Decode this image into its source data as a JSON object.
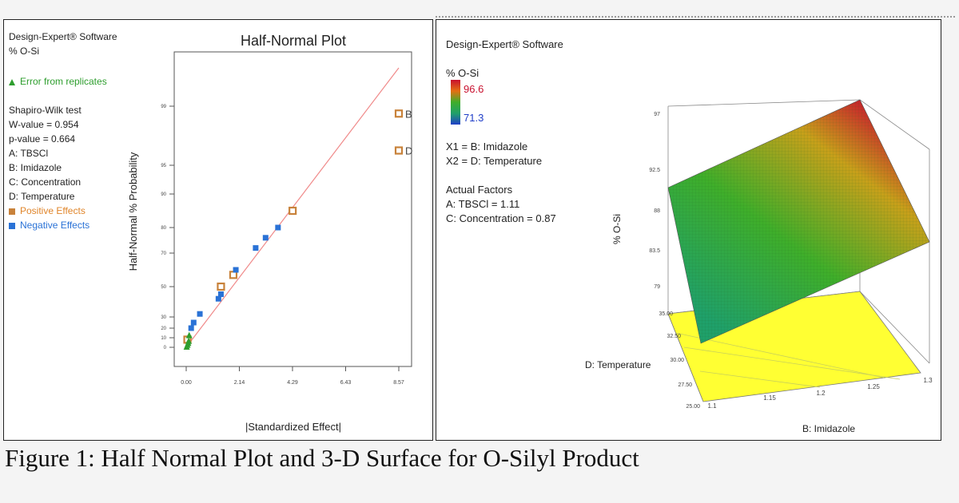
{
  "left": {
    "software": "Design-Expert® Software",
    "response": "% O-Si",
    "error_label": "Error from replicates",
    "test_name": "Shapiro-Wilk test",
    "w_value": "W-value = 0.954",
    "p_value": "p-value = 0.664",
    "factors": [
      "A: TBSCl",
      "B: Imidazole",
      "C: Concentration",
      "D: Temperature"
    ],
    "positive_label": "Positive Effects",
    "negative_label": "Negative Effects"
  },
  "right": {
    "software": "Design-Expert® Software",
    "response": "% O-Si",
    "max_value": "96.6",
    "min_value": "71.3",
    "x1": "X1 = B: Imidazole",
    "x2": "X2 = D: Temperature",
    "actual_factors_title": "Actual Factors",
    "actual_a": "A: TBSCl = 1.11",
    "actual_c": "C: Concentration = 0.87"
  },
  "caption": "Figure 1: Half Normal Plot and 3-D Surface for O-Silyl Product",
  "colors": {
    "positive": "#c8823a",
    "negative": "#2a72d6",
    "error": "#2e9e2e",
    "reference_line": "#f08a8a",
    "surface_high": "#c8102e",
    "surface_low": "#1fa06a",
    "floor": "#ffff33"
  },
  "chart_data": [
    {
      "type": "scatter",
      "title": "Half-Normal Plot",
      "xlabel": "|Standardized Effect|",
      "ylabel": "Half-Normal % Probability",
      "xlim": [
        0,
        8.57
      ],
      "x_ticks": [
        "0.00",
        "2.14",
        "4.29",
        "6.43",
        "8.57"
      ],
      "y_ticks": [
        "0",
        "10",
        "20",
        "30",
        "50",
        "70",
        "80",
        "90",
        "95",
        "99"
      ],
      "reference_line": {
        "x": [
          0,
          8.57
        ],
        "y": [
          0,
          99.9
        ]
      },
      "series": [
        {
          "name": "Positive Effects",
          "marker": "square-outline",
          "points": [
            {
              "x": 0.05,
              "y": 8
            },
            {
              "x": 1.4,
              "y": 50
            },
            {
              "x": 1.9,
              "y": 57
            },
            {
              "x": 4.29,
              "y": 85
            },
            {
              "x": 8.57,
              "y": 96,
              "label": "D"
            },
            {
              "x": 8.57,
              "y": 98.5,
              "label": "B"
            }
          ]
        },
        {
          "name": "Negative Effects",
          "marker": "square",
          "points": [
            {
              "x": 0.2,
              "y": 20
            },
            {
              "x": 0.3,
              "y": 25
            },
            {
              "x": 0.55,
              "y": 32
            },
            {
              "x": 1.3,
              "y": 42
            },
            {
              "x": 1.4,
              "y": 45
            },
            {
              "x": 2.0,
              "y": 60
            },
            {
              "x": 2.8,
              "y": 72
            },
            {
              "x": 3.2,
              "y": 76
            },
            {
              "x": 3.7,
              "y": 80
            }
          ]
        },
        {
          "name": "Error from replicates",
          "marker": "triangle",
          "points": [
            {
              "x": 0.02,
              "y": 0
            },
            {
              "x": 0.05,
              "y": 2
            },
            {
              "x": 0.08,
              "y": 4
            },
            {
              "x": 0.1,
              "y": 6
            },
            {
              "x": 0.12,
              "y": 12
            }
          ]
        }
      ]
    },
    {
      "type": "surface",
      "zlabel": "% O-Si",
      "xlabel": "B: Imidazole",
      "ylabel": "D: Temperature",
      "x_ticks": [
        "1.1",
        "1.15",
        "1.2",
        "1.25",
        "1.3"
      ],
      "y_ticks": [
        "25.00",
        "27.50",
        "30.00",
        "32.50",
        "35.00"
      ],
      "z_ticks": [
        "79",
        "83.5",
        "88",
        "92.5",
        "97"
      ],
      "xlim": [
        1.1,
        1.3
      ],
      "ylim": [
        25,
        35
      ],
      "zlim": [
        79,
        97
      ],
      "z_range": [
        71.3,
        96.6
      ]
    }
  ]
}
